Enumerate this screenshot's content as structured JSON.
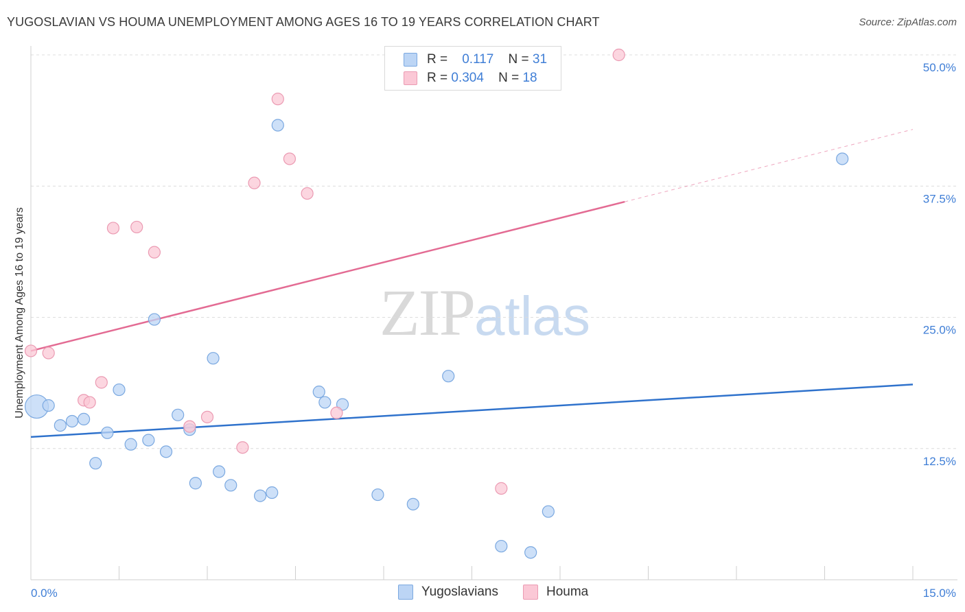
{
  "header": {
    "title": "YUGOSLAVIAN VS HOUMA UNEMPLOYMENT AMONG AGES 16 TO 19 YEARS CORRELATION CHART",
    "source": "Source: ZipAtlas.com"
  },
  "watermark": {
    "zip": "ZIP",
    "atlas": "atlas"
  },
  "legend": {
    "rows": [
      {
        "r_label": "R =",
        "r_value": "0.117",
        "n_label": "N =",
        "n_value": "31"
      },
      {
        "r_label": "R =",
        "r_value": "0.304",
        "n_label": "N =",
        "n_value": "18"
      }
    ]
  },
  "bottom_legend": {
    "series1": "Yugoslavians",
    "series2": "Houma"
  },
  "chart_data": {
    "type": "scatter",
    "title": "YUGOSLAVIAN VS HOUMA UNEMPLOYMENT AMONG AGES 16 TO 19 YEARS CORRELATION CHART",
    "xlabel": "",
    "ylabel": "Unemployment Among Ages 16 to 19 years",
    "xlim": [
      0,
      15
    ],
    "ylim": [
      0,
      52
    ],
    "x_tick_labels": [
      "0.0%",
      "15.0%"
    ],
    "y_ticks": [
      12.5,
      25.0,
      37.5,
      50.0
    ],
    "y_tick_labels": [
      "12.5%",
      "25.0%",
      "37.5%",
      "50.0%"
    ],
    "grid": true,
    "legend_position": "top-center",
    "colors": {
      "yugoslavians_fill": "#bcd5f5",
      "yugoslavians_stroke": "#7aa8e0",
      "yugoslavians_line": "#2f72cc",
      "houma_fill": "#fbc8d6",
      "houma_stroke": "#eb9ab2",
      "houma_line": "#e36b93",
      "tick": "#3f7ed6"
    },
    "series": [
      {
        "name": "Yugoslavians",
        "r": 0.117,
        "n": 31,
        "trend": {
          "x": [
            0,
            15
          ],
          "y": [
            13.6,
            18.6
          ],
          "dashed_from": null
        },
        "points": [
          [
            0.1,
            16.5,
            1
          ],
          [
            0.3,
            16.6,
            0
          ],
          [
            0.5,
            14.7,
            0
          ],
          [
            0.7,
            15.1,
            0
          ],
          [
            0.9,
            15.3,
            0
          ],
          [
            1.1,
            11.1,
            0
          ],
          [
            1.3,
            14.0,
            0
          ],
          [
            1.5,
            18.1,
            0
          ],
          [
            1.7,
            12.9,
            0
          ],
          [
            2.0,
            13.3,
            0
          ],
          [
            2.1,
            24.8,
            0
          ],
          [
            2.3,
            12.2,
            0
          ],
          [
            2.5,
            15.7,
            0
          ],
          [
            2.7,
            14.3,
            0
          ],
          [
            2.8,
            9.2,
            0
          ],
          [
            3.1,
            21.1,
            0
          ],
          [
            3.2,
            10.3,
            0
          ],
          [
            3.4,
            9.0,
            0
          ],
          [
            3.9,
            8.0,
            0
          ],
          [
            4.1,
            8.3,
            0
          ],
          [
            4.2,
            43.3,
            0
          ],
          [
            4.9,
            17.9,
            0
          ],
          [
            5.0,
            16.9,
            0
          ],
          [
            5.3,
            16.7,
            0
          ],
          [
            5.9,
            8.1,
            0
          ],
          [
            6.5,
            7.2,
            0
          ],
          [
            7.1,
            19.4,
            0
          ],
          [
            8.0,
            3.2,
            0
          ],
          [
            8.5,
            2.6,
            0
          ],
          [
            8.8,
            6.5,
            0
          ],
          [
            13.8,
            40.1,
            0
          ]
        ]
      },
      {
        "name": "Houma",
        "r": 0.304,
        "n": 18,
        "trend": {
          "x": [
            0,
            15
          ],
          "y": [
            21.8,
            42.9
          ],
          "dashed_from": 10.1
        },
        "points": [
          [
            0.0,
            21.8
          ],
          [
            0.3,
            21.6
          ],
          [
            0.9,
            17.1
          ],
          [
            1.0,
            16.9
          ],
          [
            1.2,
            18.8
          ],
          [
            1.4,
            33.5
          ],
          [
            1.8,
            33.6
          ],
          [
            2.1,
            31.2
          ],
          [
            2.7,
            14.6
          ],
          [
            3.0,
            15.5
          ],
          [
            3.6,
            12.6
          ],
          [
            3.8,
            37.8
          ],
          [
            4.2,
            45.8
          ],
          [
            4.4,
            40.1
          ],
          [
            4.7,
            36.8
          ],
          [
            5.2,
            15.9
          ],
          [
            8.0,
            8.7
          ],
          [
            10.0,
            50.0
          ]
        ]
      }
    ]
  }
}
